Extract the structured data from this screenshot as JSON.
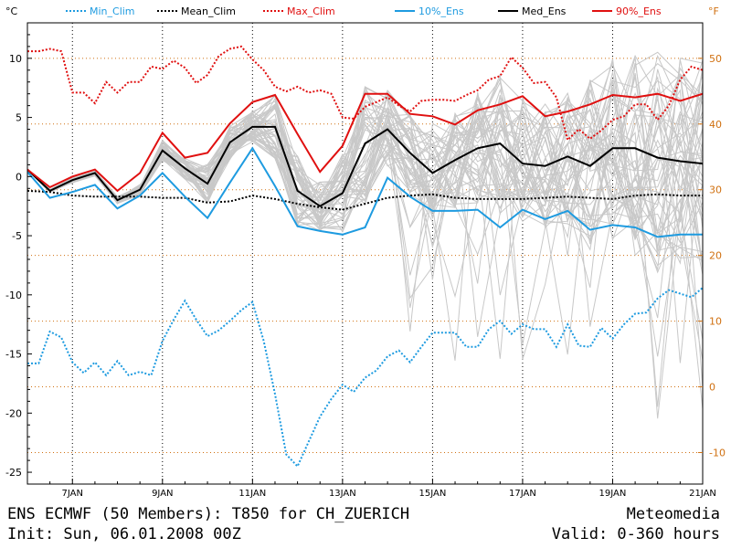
{
  "footer": {
    "line1_left": "ENS ECMWF (50 Members): T850 for CH_ZUERICH",
    "line2_left": "Init: Sun, 06.01.2008 00Z",
    "line1_right": "Meteomedia",
    "line2_right": "Valid: 0-360 hours"
  },
  "colors": {
    "min_clim": "#1e9be0",
    "mean_clim": "#000000",
    "max_clim": "#e01010",
    "ens10": "#1e9be0",
    "med": "#000000",
    "ens90": "#e01010",
    "members": "#c8c8c8",
    "right_axis": "#d07010",
    "grid_h": "#d07010",
    "grid_v": "#000000"
  },
  "chart_data": {
    "type": "line",
    "y_unit_label": "°C",
    "y2_unit_label": "°F",
    "x_ticks": [
      "7JAN",
      "9JAN",
      "11JAN",
      "13JAN",
      "15JAN",
      "17JAN",
      "19JAN",
      "21JAN"
    ],
    "x_tick_hours": [
      24,
      72,
      120,
      168,
      216,
      264,
      312,
      360
    ],
    "xlim": [
      0,
      360
    ],
    "ylim": [
      -26,
      13
    ],
    "y_ticks": [
      10,
      5,
      0,
      -5,
      -10,
      -15,
      -20,
      -25
    ],
    "y2_ticks": [
      50,
      40,
      30,
      20,
      10,
      0,
      -10
    ],
    "legend": [
      "Min_Clim",
      "Mean_Clim",
      "Max_Clim",
      "10%_Ens",
      "Med_Ens",
      "90%_Ens"
    ],
    "legend_placement": "top",
    "series": [
      {
        "name": "Min_Clim",
        "style": "dotted",
        "x": [
          0,
          6,
          12,
          18,
          24,
          30,
          36,
          42,
          48,
          54,
          60,
          66,
          72,
          78,
          84,
          90,
          96,
          102,
          108,
          114,
          120,
          126,
          132,
          138,
          144,
          150,
          156,
          162,
          168,
          174,
          180,
          186,
          192,
          198,
          204,
          210,
          216,
          222,
          228,
          234,
          240,
          246,
          252,
          258,
          264,
          270,
          276,
          282,
          288,
          294,
          300,
          306,
          312,
          318,
          324,
          330,
          336,
          342,
          348,
          354,
          360
        ],
        "values": [
          -15.8,
          -15.8,
          -13.1,
          -13.6,
          -15.7,
          -16.6,
          -15.7,
          -16.8,
          -15.6,
          -16.8,
          -16.5,
          -16.8,
          -13.9,
          -12.1,
          -10.5,
          -12.1,
          -13.5,
          -13.0,
          -12.2,
          -11.3,
          -10.6,
          -13.9,
          -18.4,
          -23.5,
          -24.5,
          -22.4,
          -20.3,
          -18.8,
          -17.6,
          -18.2,
          -17.0,
          -16.4,
          -15.2,
          -14.7,
          -15.7,
          -14.4,
          -13.2,
          -13.2,
          -13.2,
          -14.4,
          -14.4,
          -12.9,
          -12.2,
          -13.3,
          -12.5,
          -12.9,
          -12.9,
          -14.4,
          -12.5,
          -14.3,
          -14.4,
          -12.8,
          -13.7,
          -12.5,
          -11.6,
          -11.5,
          -10.3,
          -9.6,
          -9.9,
          -10.2,
          -9.4
        ]
      },
      {
        "name": "Mean_Clim",
        "style": "dotted",
        "x": [
          0,
          12,
          24,
          36,
          48,
          60,
          72,
          84,
          96,
          108,
          120,
          132,
          144,
          156,
          168,
          180,
          192,
          204,
          216,
          228,
          240,
          252,
          264,
          276,
          288,
          300,
          312,
          324,
          336,
          348,
          360
        ],
        "values": [
          -1.2,
          -1.3,
          -1.6,
          -1.7,
          -1.7,
          -1.7,
          -1.8,
          -1.8,
          -2.2,
          -2.1,
          -1.6,
          -1.9,
          -2.3,
          -2.6,
          -2.8,
          -2.3,
          -1.8,
          -1.6,
          -1.5,
          -1.8,
          -1.9,
          -1.9,
          -1.9,
          -1.8,
          -1.7,
          -1.8,
          -1.9,
          -1.6,
          -1.5,
          -1.6,
          -1.6
        ]
      },
      {
        "name": "Max_Clim",
        "style": "dotted",
        "x": [
          0,
          6,
          12,
          18,
          24,
          30,
          36,
          42,
          48,
          54,
          60,
          66,
          72,
          78,
          84,
          90,
          96,
          102,
          108,
          114,
          120,
          126,
          132,
          138,
          144,
          150,
          156,
          162,
          168,
          174,
          180,
          186,
          192,
          198,
          204,
          210,
          216,
          222,
          228,
          234,
          240,
          246,
          252,
          258,
          264,
          270,
          276,
          282,
          288,
          294,
          300,
          306,
          312,
          318,
          324,
          330,
          336,
          342,
          348,
          354,
          360
        ],
        "values": [
          10.6,
          10.6,
          10.8,
          10.6,
          7.1,
          7.1,
          6.2,
          8.0,
          7.1,
          8.0,
          8.0,
          9.3,
          9.1,
          9.8,
          9.2,
          7.9,
          8.6,
          10.2,
          10.8,
          11.0,
          9.9,
          9.0,
          7.6,
          7.2,
          7.6,
          7.1,
          7.3,
          7.0,
          5.0,
          4.9,
          5.9,
          6.3,
          6.7,
          6.0,
          5.5,
          6.4,
          6.5,
          6.5,
          6.4,
          6.9,
          7.3,
          8.2,
          8.5,
          10.1,
          9.2,
          7.9,
          8.0,
          6.7,
          3.1,
          4.0,
          3.2,
          3.9,
          4.8,
          5.1,
          6.1,
          6.1,
          4.8,
          6.0,
          8.2,
          9.3,
          9.0
        ]
      },
      {
        "name": "10%_Ens",
        "style": "solid",
        "x": [
          0,
          12,
          24,
          36,
          48,
          60,
          72,
          84,
          96,
          108,
          120,
          132,
          144,
          156,
          168,
          180,
          192,
          204,
          216,
          228,
          240,
          252,
          264,
          276,
          288,
          300,
          312,
          324,
          336,
          348,
          360
        ],
        "values": [
          0.4,
          -1.8,
          -1.3,
          -0.7,
          -2.7,
          -1.6,
          0.3,
          -1.7,
          -3.5,
          -0.5,
          2.4,
          -0.8,
          -4.2,
          -4.6,
          -4.9,
          -4.3,
          -0.1,
          -1.7,
          -2.9,
          -2.9,
          -2.8,
          -4.3,
          -2.8,
          -3.6,
          -2.9,
          -4.5,
          -4.1,
          -4.3,
          -5.1,
          -4.9,
          -4.9
        ]
      },
      {
        "name": "Med_Ens",
        "style": "solid",
        "x": [
          0,
          12,
          24,
          36,
          48,
          60,
          72,
          84,
          96,
          108,
          120,
          132,
          144,
          156,
          168,
          180,
          192,
          204,
          216,
          228,
          240,
          252,
          264,
          276,
          288,
          300,
          312,
          324,
          336,
          348,
          360
        ],
        "values": [
          0.6,
          -1.2,
          -0.3,
          0.3,
          -2.0,
          -1.1,
          2.2,
          0.7,
          -0.6,
          2.9,
          4.2,
          4.2,
          -1.2,
          -2.5,
          -1.4,
          2.8,
          4.0,
          2.0,
          0.3,
          1.4,
          2.4,
          2.8,
          1.1,
          0.9,
          1.7,
          0.9,
          2.4,
          2.4,
          1.6,
          1.3,
          1.1
        ]
      },
      {
        "name": "90%_Ens",
        "style": "solid",
        "x": [
          0,
          12,
          24,
          36,
          48,
          60,
          72,
          84,
          96,
          108,
          120,
          132,
          144,
          156,
          168,
          180,
          192,
          204,
          216,
          228,
          240,
          252,
          264,
          276,
          288,
          300,
          312,
          324,
          336,
          348,
          360
        ],
        "values": [
          0.6,
          -0.9,
          0.0,
          0.6,
          -1.2,
          0.3,
          3.7,
          1.6,
          2.0,
          4.5,
          6.3,
          6.9,
          3.6,
          0.4,
          2.6,
          7.0,
          7.0,
          5.3,
          5.1,
          4.4,
          5.6,
          6.1,
          6.8,
          5.1,
          5.5,
          6.1,
          6.9,
          6.7,
          7.0,
          6.4,
          7.0
        ]
      }
    ]
  }
}
